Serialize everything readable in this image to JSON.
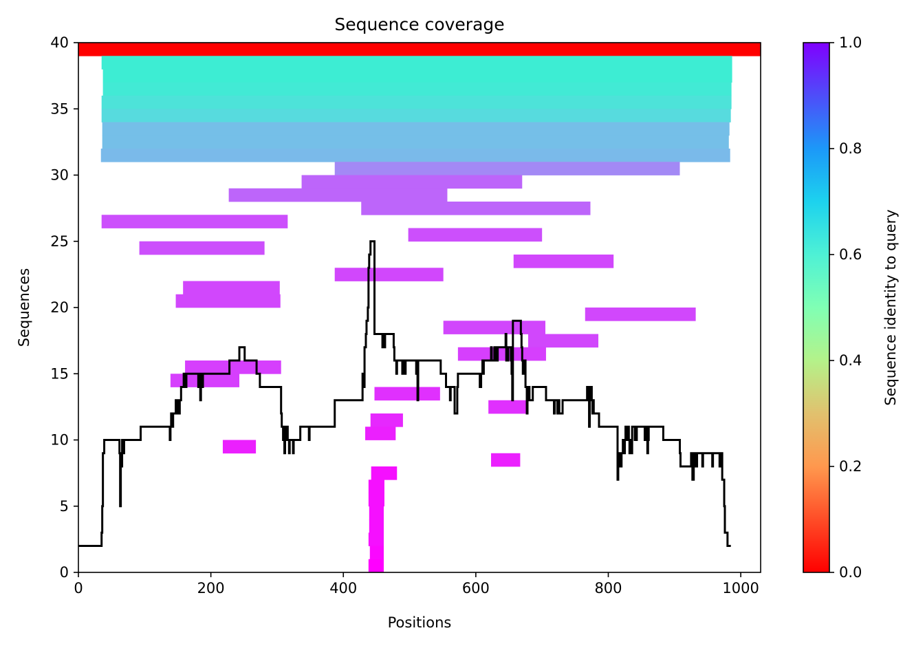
{
  "chart_data": {
    "type": "heatmap",
    "title": "Sequence coverage",
    "xlabel": "Positions",
    "ylabel": "Sequences",
    "xlim": [
      0,
      1030
    ],
    "ylim": [
      0,
      40
    ],
    "x_ticks": [
      0,
      200,
      400,
      600,
      800,
      1000
    ],
    "y_ticks": [
      0,
      5,
      10,
      15,
      20,
      25,
      30,
      35,
      40
    ],
    "grid": false,
    "colorbar": {
      "label": "Sequence identity to query",
      "colormap": "rainbow",
      "range": [
        0,
        1
      ],
      "ticks": [
        0.0,
        0.2,
        0.4,
        0.6,
        0.8,
        1.0
      ],
      "tick_labels": [
        "0.0",
        "0.2",
        "0.4",
        "0.6",
        "0.8",
        "1.0"
      ]
    },
    "alignments": [
      {
        "row": 39,
        "start": 0,
        "end": 1030,
        "identity": 1.0
      },
      {
        "row": 38,
        "start": 35,
        "end": 987,
        "identity": 0.38
      },
      {
        "row": 37,
        "start": 37,
        "end": 987,
        "identity": 0.38
      },
      {
        "row": 36,
        "start": 37,
        "end": 986,
        "identity": 0.37
      },
      {
        "row": 35,
        "start": 35,
        "end": 986,
        "identity": 0.35
      },
      {
        "row": 34,
        "start": 35,
        "end": 985,
        "identity": 0.33
      },
      {
        "row": 33,
        "start": 36,
        "end": 983,
        "identity": 0.27
      },
      {
        "row": 32,
        "start": 36,
        "end": 982,
        "identity": 0.27
      },
      {
        "row": 31,
        "start": 34,
        "end": 984,
        "identity": 0.26
      },
      {
        "row": 30,
        "start": 387,
        "end": 908,
        "identity": 0.18
      },
      {
        "row": 29,
        "start": 337,
        "end": 670,
        "identity": 0.13
      },
      {
        "row": 28,
        "start": 227,
        "end": 557,
        "identity": 0.13
      },
      {
        "row": 27,
        "start": 427,
        "end": 773,
        "identity": 0.13
      },
      {
        "row": 26,
        "start": 35,
        "end": 316,
        "identity": 0.1
      },
      {
        "row": 25,
        "start": 498,
        "end": 700,
        "identity": 0.1
      },
      {
        "row": 24,
        "start": 92,
        "end": 281,
        "identity": 0.1
      },
      {
        "row": 23,
        "start": 657,
        "end": 808,
        "identity": 0.09
      },
      {
        "row": 22,
        "start": 387,
        "end": 551,
        "identity": 0.09
      },
      {
        "row": 21,
        "start": 158,
        "end": 304,
        "identity": 0.09
      },
      {
        "row": 20,
        "start": 147,
        "end": 305,
        "identity": 0.09
      },
      {
        "row": 19,
        "start": 765,
        "end": 932,
        "identity": 0.09
      },
      {
        "row": 18,
        "start": 551,
        "end": 705,
        "identity": 0.09
      },
      {
        "row": 17,
        "start": 679,
        "end": 785,
        "identity": 0.09
      },
      {
        "row": 16,
        "start": 573,
        "end": 706,
        "identity": 0.08
      },
      {
        "row": 15,
        "start": 161,
        "end": 306,
        "identity": 0.08
      },
      {
        "row": 14,
        "start": 139,
        "end": 243,
        "identity": 0.08
      },
      {
        "row": 13,
        "start": 447,
        "end": 546,
        "identity": 0.06
      },
      {
        "row": 12,
        "start": 619,
        "end": 676,
        "identity": 0.06
      },
      {
        "row": 11,
        "start": 441,
        "end": 490,
        "identity": 0.05
      },
      {
        "row": 10,
        "start": 433,
        "end": 479,
        "identity": 0.04
      },
      {
        "row": 9,
        "start": 218,
        "end": 268,
        "identity": 0.04
      },
      {
        "row": 8,
        "start": 623,
        "end": 667,
        "identity": 0.04
      },
      {
        "row": 7,
        "start": 442,
        "end": 481,
        "identity": 0.02
      },
      {
        "row": 6,
        "start": 438,
        "end": 462,
        "identity": 0.02
      },
      {
        "row": 5,
        "start": 438,
        "end": 462,
        "identity": 0.02
      },
      {
        "row": 4,
        "start": 439,
        "end": 461,
        "identity": 0.02
      },
      {
        "row": 3,
        "start": 439,
        "end": 461,
        "identity": 0.02
      },
      {
        "row": 2,
        "start": 438,
        "end": 461,
        "identity": 0.02
      },
      {
        "row": 1,
        "start": 440,
        "end": 461,
        "identity": 0.01
      },
      {
        "row": 0,
        "start": 438,
        "end": 461,
        "identity": 0.0
      }
    ],
    "coverage_line": {
      "color": "#000000",
      "x": [
        0,
        33,
        35,
        36,
        37,
        39,
        60,
        62,
        63,
        64,
        66,
        67,
        69,
        70,
        93,
        94,
        137,
        138,
        139,
        140,
        141,
        143,
        144,
        146,
        147,
        148,
        150,
        152,
        153,
        155,
        158,
        159,
        160,
        163,
        180,
        181,
        183,
        184,
        185,
        186,
        188,
        189,
        227,
        228,
        242,
        243,
        244,
        250,
        251,
        268,
        269,
        273,
        274,
        305,
        306,
        307,
        309,
        310,
        311,
        312,
        314,
        315,
        316,
        317,
        318,
        319,
        320,
        321,
        322,
        324,
        325,
        327,
        328,
        329,
        330,
        333,
        334,
        335,
        347,
        348,
        349,
        350,
        351,
        386,
        387,
        428,
        429,
        431,
        432,
        434,
        435,
        437,
        438,
        439,
        440,
        441,
        442,
        446,
        447,
        458,
        459,
        461,
        462,
        463,
        476,
        477,
        479,
        480,
        481,
        483,
        484,
        488,
        489,
        492,
        493,
        494,
        497,
        498,
        509,
        510,
        511,
        512,
        513,
        546,
        547,
        554,
        555,
        557,
        558,
        561,
        562,
        567,
        568,
        572,
        573,
        594,
        595,
        605,
        606,
        608,
        609,
        610,
        611,
        612,
        615,
        617,
        618,
        620,
        622,
        623,
        624,
        627,
        628,
        629,
        630,
        631,
        632,
        633,
        635,
        636,
        637,
        638,
        644,
        645,
        646,
        648,
        649,
        652,
        653,
        654,
        655,
        656,
        657,
        658,
        668,
        669,
        670,
        671,
        672,
        673,
        675,
        676,
        677,
        678,
        680,
        681,
        683,
        684,
        685,
        686,
        706,
        707,
        718,
        719,
        720,
        721,
        723,
        724,
        725,
        726,
        731,
        732,
        733,
        764,
        765,
        766,
        767,
        768,
        769,
        770,
        771,
        772,
        773,
        774,
        775,
        776,
        777,
        778,
        779,
        780,
        785,
        786,
        811,
        812,
        813,
        814,
        815,
        816,
        817,
        819,
        820,
        821,
        822,
        824,
        825,
        826,
        828,
        829,
        830,
        831,
        832,
        833,
        835,
        836,
        839,
        840,
        841,
        843,
        844,
        845,
        850,
        851,
        852,
        854,
        855,
        858,
        859,
        860,
        861,
        863,
        864,
        870,
        871,
        873,
        875,
        876,
        877,
        880,
        882,
        883,
        885,
        908,
        909,
        925,
        926,
        927,
        929,
        930,
        931,
        932,
        933,
        934,
        935,
        937,
        938,
        939,
        940,
        941,
        942,
        943,
        944,
        957,
        958,
        959,
        960,
        961,
        962,
        963,
        964,
        966,
        967,
        968,
        969,
        970,
        971,
        972,
        975,
        976,
        979,
        980,
        981,
        982,
        983,
        985,
        986,
        987,
        988,
        989,
        1030
      ],
      "y": [
        2,
        2,
        3,
        5,
        9,
        10,
        10,
        9,
        5,
        8,
        10,
        9,
        10,
        10,
        10,
        11,
        11,
        10,
        11,
        12,
        11,
        12,
        12,
        12,
        13,
        12,
        13,
        12,
        13,
        14,
        14,
        15,
        14,
        15,
        15,
        14,
        15,
        13,
        15,
        14,
        15,
        15,
        15,
        16,
        16,
        17,
        17,
        17,
        16,
        16,
        15,
        15,
        14,
        14,
        12,
        11,
        10,
        10,
        9,
        11,
        10,
        11,
        10,
        10,
        9,
        10,
        10,
        10,
        10,
        9,
        10,
        10,
        10,
        10,
        10,
        10,
        10,
        11,
        11,
        10,
        11,
        11,
        11,
        11,
        13,
        13,
        15,
        14,
        17,
        18,
        19,
        20,
        23,
        24,
        24,
        25,
        25,
        25,
        18,
        18,
        17,
        18,
        17,
        18,
        17,
        16,
        16,
        15,
        16,
        16,
        16,
        16,
        15,
        16,
        15,
        16,
        16,
        16,
        16,
        15,
        16,
        13,
        16,
        16,
        15,
        15,
        14,
        14,
        14,
        13,
        14,
        14,
        12,
        14,
        15,
        15,
        15,
        15,
        14,
        15,
        15,
        16,
        15,
        16,
        16,
        16,
        16,
        16,
        16,
        17,
        16,
        16,
        17,
        16,
        17,
        17,
        16,
        17,
        17,
        17,
        17,
        17,
        17,
        18,
        16,
        16,
        17,
        17,
        16,
        15,
        13,
        19,
        19,
        19,
        18,
        17,
        16,
        15,
        16,
        16,
        14,
        14,
        12,
        13,
        14,
        13,
        13,
        13,
        13,
        14,
        13,
        13,
        12,
        13,
        13,
        13,
        12,
        13,
        13,
        12,
        13,
        13,
        13,
        13,
        13,
        13,
        13,
        14,
        14,
        13,
        11,
        13,
        14,
        14,
        13,
        12,
        13,
        12,
        12,
        12,
        12,
        11,
        11,
        11,
        11,
        7,
        9,
        8,
        9,
        8,
        9,
        9,
        10,
        9,
        10,
        11,
        11,
        10,
        11,
        10,
        9,
        10,
        9,
        11,
        11,
        10,
        10,
        11,
        11,
        11,
        11,
        11,
        11,
        11,
        10,
        11,
        9,
        10,
        11,
        11,
        11,
        11,
        11,
        11,
        11,
        11,
        11,
        11,
        11,
        10,
        10,
        9,
        8,
        9,
        8,
        7,
        9,
        8,
        8,
        9,
        8,
        9,
        9,
        9,
        9,
        9,
        9,
        9,
        8,
        9,
        9,
        8,
        9,
        9,
        9,
        9,
        9,
        9,
        9,
        9,
        9,
        8,
        9,
        9,
        9,
        7,
        5,
        3,
        3,
        2,
        2,
        2,
        2
      ]
    }
  }
}
